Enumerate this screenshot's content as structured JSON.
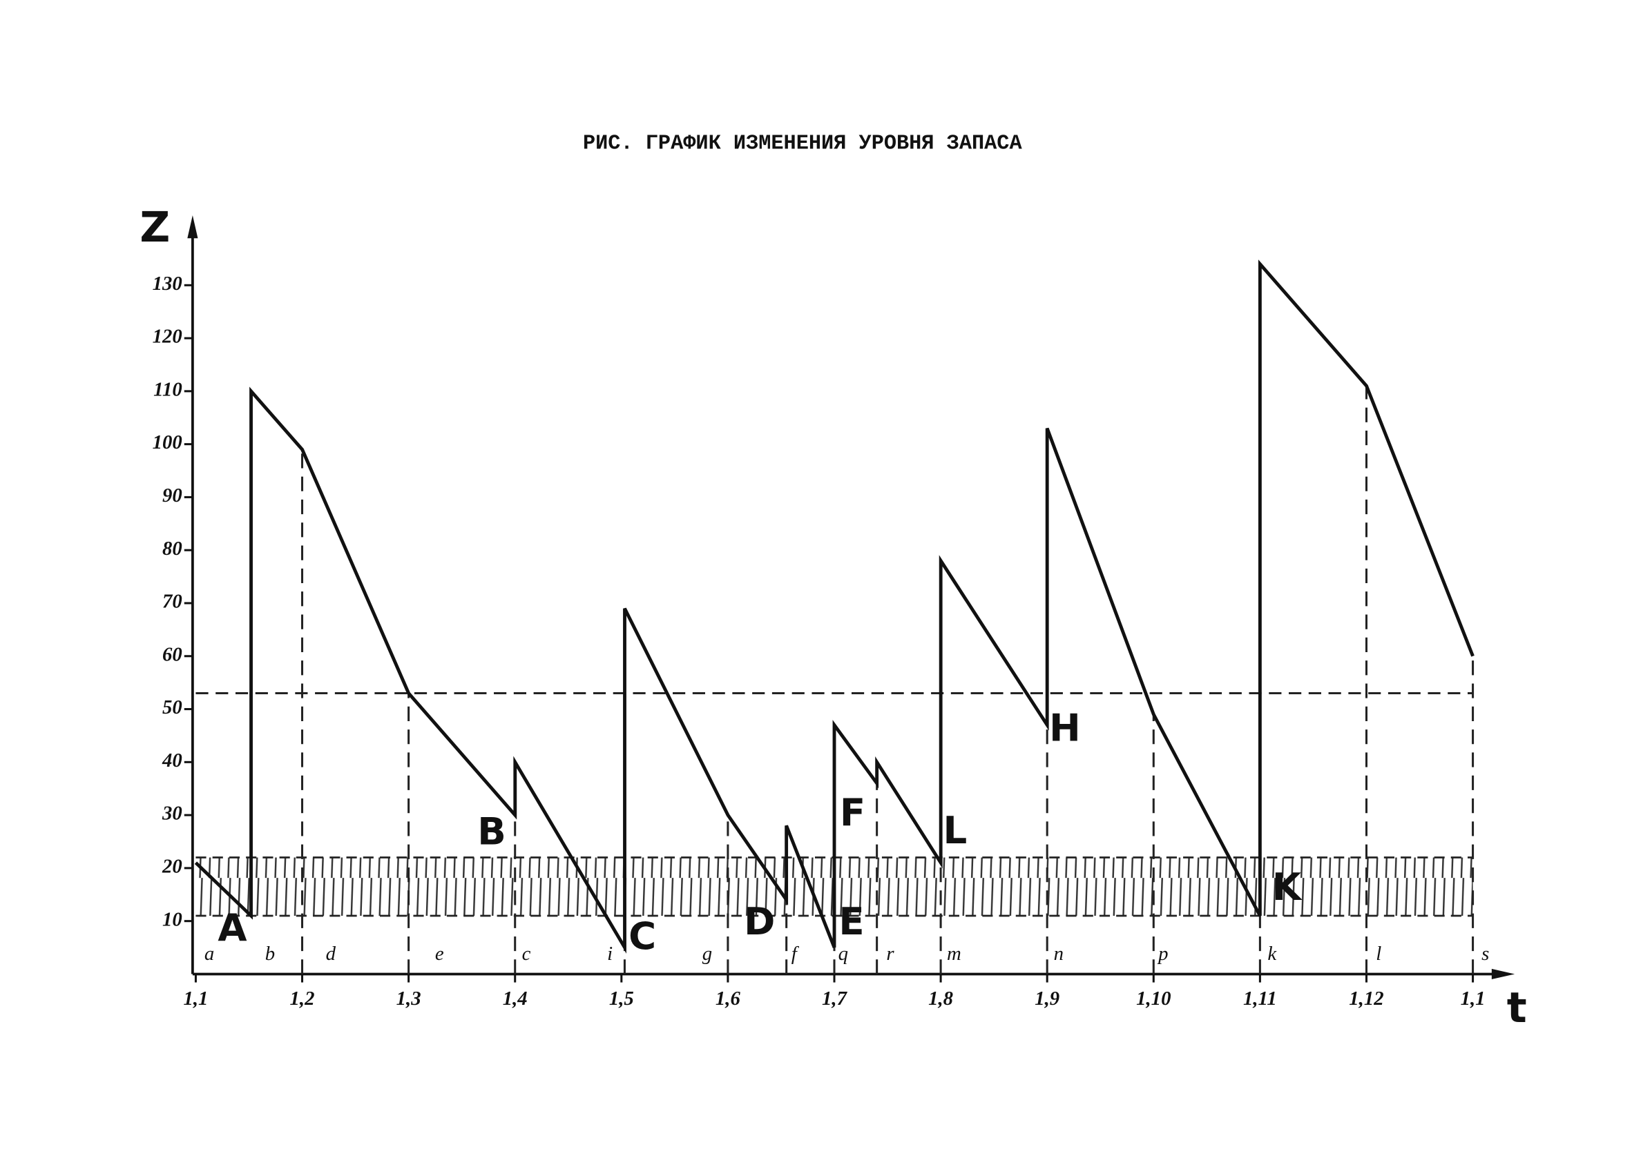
{
  "chart_data": {
    "type": "line",
    "title": "РИС. ГРАФИК ИЗМЕНЕНИЯ УРОВНЯ ЗАПАСА",
    "y_label": "Z",
    "x_label": "t",
    "xlim": [
      0,
      12
    ],
    "xticks": [
      {
        "value": 0,
        "label": "1,1"
      },
      {
        "value": 1,
        "label": "1,2"
      },
      {
        "value": 2,
        "label": "1,3"
      },
      {
        "value": 3,
        "label": "1,4"
      },
      {
        "value": 4,
        "label": "1,5"
      },
      {
        "value": 5,
        "label": "1,6"
      },
      {
        "value": 6,
        "label": "1,7"
      },
      {
        "value": 7,
        "label": "1,8"
      },
      {
        "value": 8,
        "label": "1,9"
      },
      {
        "value": 9,
        "label": "1,10"
      },
      {
        "value": 10,
        "label": "1,11"
      },
      {
        "value": 11,
        "label": "1,12"
      },
      {
        "value": 12,
        "label": "1,1"
      }
    ],
    "ylim": [
      0,
      140
    ],
    "yticks": [
      10,
      20,
      30,
      40,
      50,
      60,
      70,
      80,
      90,
      100,
      110,
      120,
      130
    ],
    "series": [
      {
        "color": "#111111",
        "x": [
          0,
          0.52,
          0.52,
          1,
          2,
          3,
          3,
          4.03,
          4.03,
          5,
          5.55,
          5.55,
          6,
          6,
          6.4,
          6.4,
          7,
          7,
          8,
          8,
          9,
          10,
          10,
          11,
          12
        ],
        "values": [
          21,
          11,
          110,
          99,
          53,
          30,
          40,
          5,
          69,
          30,
          14,
          28,
          5,
          47,
          36,
          40,
          21,
          78,
          47,
          103,
          49,
          11,
          134,
          111,
          60
        ]
      }
    ],
    "reference_line": 53,
    "band": [
      11,
      22
    ],
    "dashed_x": [
      1,
      2,
      3,
      4.03,
      5,
      5.55,
      6,
      6.4,
      7,
      8,
      9,
      10,
      11,
      12
    ],
    "segment_labels": [
      "a",
      "b",
      "d",
      "e",
      "c",
      "i",
      "g",
      "f",
      "q",
      "r",
      "m",
      "n",
      "p",
      "k",
      "l",
      "s"
    ],
    "point_labels": [
      "A",
      "B",
      "C",
      "D",
      "E",
      "F",
      "L",
      "H",
      "K"
    ]
  }
}
